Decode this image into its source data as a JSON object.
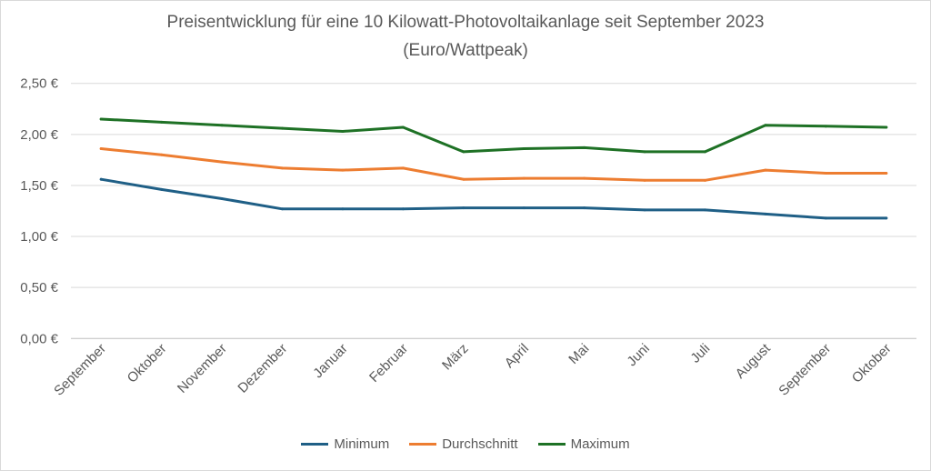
{
  "chart_data": {
    "type": "line",
    "title": "Preisentwicklung für eine 10 Kilowatt-Photovoltaikanlage seit September 2023",
    "subtitle": "(Euro/Wattpeak)",
    "categories": [
      "September",
      "Oktober",
      "November",
      "Dezember",
      "Januar",
      "Februar",
      "März",
      "April",
      "Mai",
      "Juni",
      "Juli",
      "August",
      "September",
      "Oktober"
    ],
    "y_ticks": [
      "0,00 €",
      "0,50 €",
      "1,00 €",
      "1,50 €",
      "2,00 €",
      "2,50 €"
    ],
    "ylim": [
      0,
      2.5
    ],
    "grid": true,
    "legend_position": "bottom",
    "series": [
      {
        "name": "Minimum",
        "color": "#1f5f86",
        "values": [
          1.56,
          1.46,
          1.37,
          1.27,
          1.27,
          1.27,
          1.28,
          1.28,
          1.28,
          1.26,
          1.26,
          1.22,
          1.18,
          1.18
        ]
      },
      {
        "name": "Durchschnitt",
        "color": "#ed7d31",
        "values": [
          1.86,
          1.8,
          1.73,
          1.67,
          1.65,
          1.67,
          1.56,
          1.57,
          1.57,
          1.55,
          1.55,
          1.65,
          1.62,
          1.62
        ]
      },
      {
        "name": "Maximum",
        "color": "#1e7125",
        "values": [
          2.15,
          2.12,
          2.09,
          2.06,
          2.03,
          2.07,
          1.83,
          1.86,
          1.87,
          1.83,
          1.83,
          2.09,
          2.08,
          2.07
        ]
      }
    ]
  }
}
